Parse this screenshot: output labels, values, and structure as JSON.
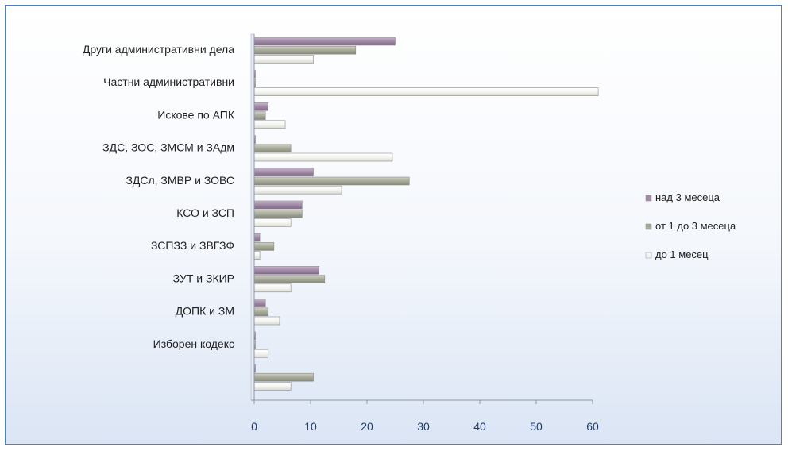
{
  "chart_data": {
    "type": "bar",
    "orientation": "horizontal",
    "title": "",
    "xlabel": "",
    "ylabel": "",
    "categories": [
      "Други административни дела",
      "Частни административни",
      "Искове по АПК",
      "ЗДС, ЗОС, ЗМСМ и ЗАдм",
      "ЗДСл, ЗМВР и ЗОВС",
      "КСО и ЗСП",
      "ЗСПЗЗ и ЗВГЗФ",
      "ЗУТ и ЗКИР",
      "ДОПК и ЗМ",
      "Изборен кодекс",
      ""
    ],
    "series": [
      {
        "name": "над 3 месеца",
        "color": "#a08aa6",
        "values": [
          25,
          0,
          2.5,
          0,
          10.5,
          8.5,
          1,
          11.5,
          2,
          0,
          0
        ]
      },
      {
        "name": "от 1 до 3 месеца",
        "color": "#a8aa9a",
        "values": [
          18,
          0,
          2,
          6.5,
          27.5,
          8.5,
          3.5,
          12.5,
          2.5,
          0,
          10.5
        ]
      },
      {
        "name": "до 1 месец",
        "color": "#f6f6f2",
        "values": [
          10.5,
          61,
          5.5,
          24.5,
          15.5,
          6.5,
          1,
          6.5,
          4.5,
          2.5,
          6.5
        ]
      }
    ],
    "xlim": [
      0,
      60
    ],
    "xticks": [
      "0",
      "10",
      "20",
      "30",
      "40",
      "50",
      "60"
    ],
    "grid": false,
    "legend_position": "right"
  }
}
